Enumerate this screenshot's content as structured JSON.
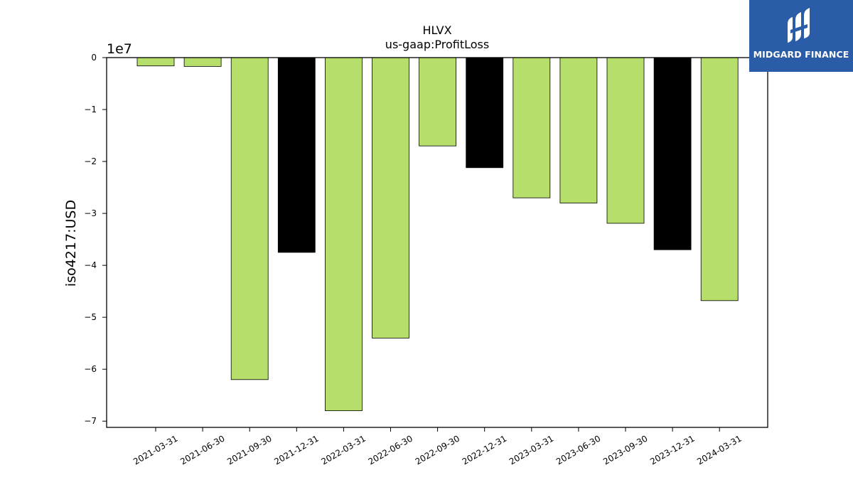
{
  "chart_data": {
    "type": "bar",
    "title": "HLVX",
    "subtitle": "us-gaap:ProfitLoss",
    "ylabel": "iso4217:USD",
    "xlabel": "",
    "y_offset_text": "1e7",
    "y_scale": 10000000,
    "ylim": [
      -7.12,
      0
    ],
    "yticks": [
      0,
      -1,
      -2,
      -3,
      -4,
      -5,
      -6,
      -7
    ],
    "ytick_labels": [
      "0",
      "−1",
      "−2",
      "−3",
      "−4",
      "−5",
      "−6",
      "−7"
    ],
    "categories": [
      "2021-03-31",
      "2021-06-30",
      "2021-09-30",
      "2021-12-31",
      "2022-03-31",
      "2022-06-30",
      "2022-09-30",
      "2022-12-31",
      "2023-03-31",
      "2023-06-30",
      "2023-09-30",
      "2023-12-31",
      "2024-03-31"
    ],
    "values": [
      -1600000,
      -1700000,
      -62000000,
      -37500000,
      -68000000,
      -54000000,
      -17000000,
      -21200000,
      -27000000,
      -28000000,
      -31900000,
      -37000000,
      -46800000
    ],
    "bar_colors": [
      "#b5de6b",
      "#b5de6b",
      "#b5de6b",
      "#000000",
      "#b5de6b",
      "#b5de6b",
      "#b5de6b",
      "#000000",
      "#b5de6b",
      "#b5de6b",
      "#b5de6b",
      "#000000",
      "#b5de6b"
    ],
    "grid": false,
    "legend": "none"
  },
  "logo": {
    "text": "MIDGARD FINANCE",
    "icon": "midgard-logo-icon",
    "background": "#2a5ca8"
  }
}
